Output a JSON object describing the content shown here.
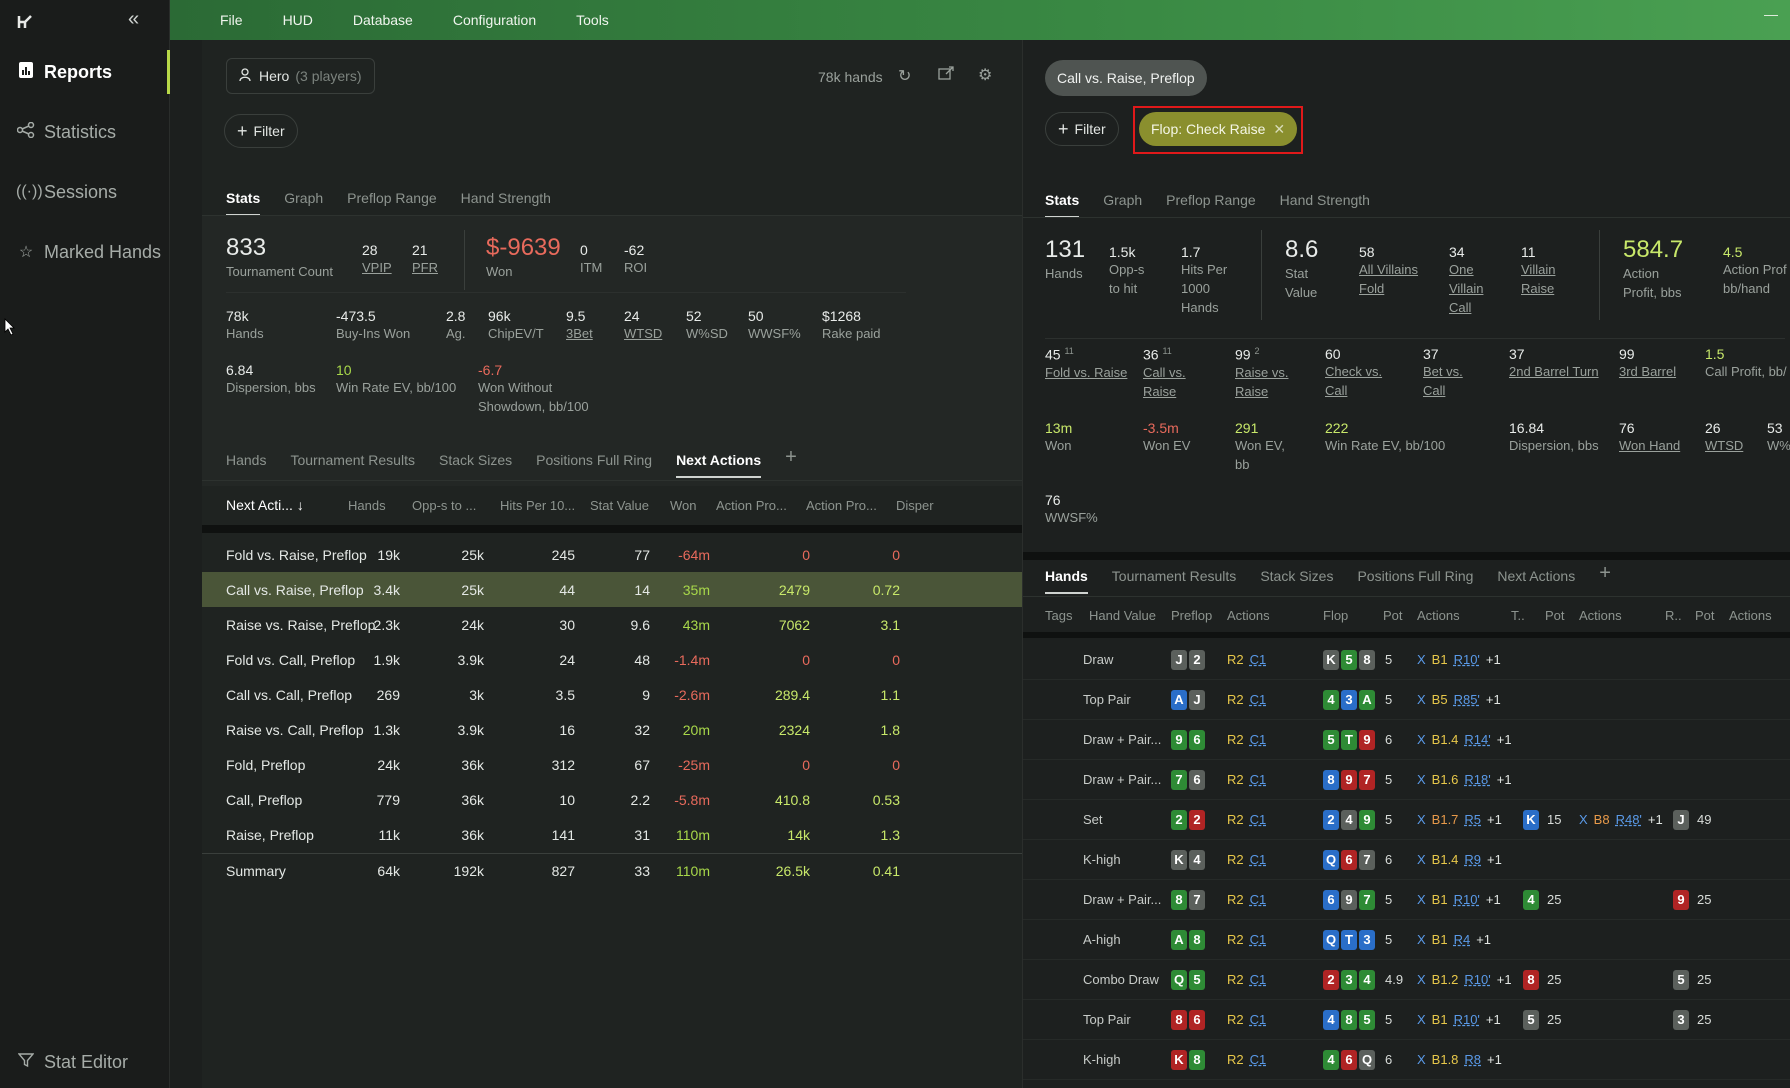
{
  "sidebar": {
    "items": [
      {
        "label": "Reports",
        "icon": "report-icon",
        "active": true
      },
      {
        "label": "Statistics",
        "icon": "share-icon"
      },
      {
        "label": "Sessions",
        "icon": "broadcast-icon"
      },
      {
        "label": "Marked Hands",
        "icon": "star-icon"
      }
    ],
    "footer_label": "Stat Editor"
  },
  "menu": [
    "File",
    "HUD",
    "Database",
    "Configuration",
    "Tools"
  ],
  "left": {
    "player_label": "Hero",
    "player_count": "(3 players)",
    "hands_count": "78k hands",
    "filter_label": "Filter",
    "tabs": [
      "Stats",
      "Graph",
      "Preflop Range",
      "Hand Strength"
    ],
    "stats_row1": [
      {
        "v": "833",
        "l": "Tournament Count"
      },
      {
        "v": "28",
        "l": "VPIP"
      },
      {
        "v": "21",
        "l": "PFR"
      },
      {
        "v": "$-9639",
        "l": "Won"
      },
      {
        "v": "0",
        "l": "ITM"
      },
      {
        "v": "-62",
        "l": "ROI"
      }
    ],
    "stats_row2": [
      {
        "v": "78k",
        "l": "Hands"
      },
      {
        "v": "-473.5",
        "l": "Buy-Ins Won"
      },
      {
        "v": "2.8",
        "l": "Ag."
      },
      {
        "v": "96k",
        "l": "ChipEV/T"
      },
      {
        "v": "9.5",
        "l": "3Bet"
      },
      {
        "v": "24",
        "l": "WTSD"
      },
      {
        "v": "52",
        "l": "W%SD"
      },
      {
        "v": "50",
        "l": "WWSF%"
      },
      {
        "v": "$1268",
        "l": "Rake paid"
      }
    ],
    "stats_row3": [
      {
        "v": "6.84",
        "l": "Dispersion, bbs"
      },
      {
        "v": "10",
        "l": "Win Rate EV, bb/100"
      },
      {
        "v": "-6.7",
        "l": "Won Without",
        "l2": "Showdown, bb/100"
      }
    ],
    "sub_tabs": [
      "Hands",
      "Tournament Results",
      "Stack Sizes",
      "Positions Full Ring",
      "Next Actions"
    ],
    "columns": [
      "Next Acti...",
      "Hands",
      "Opp-s to ...",
      "Hits Per 10...",
      "Stat Value",
      "Won",
      "Action Pro...",
      "Action Pro...",
      "Disper"
    ],
    "rows": [
      {
        "name": "Fold vs. Raise, Preflop",
        "hands": "19k",
        "opps": "25k",
        "hits": "245",
        "sv": "77",
        "won": "-64m",
        "ap1": "0",
        "ap2": "0"
      },
      {
        "name": "Call vs. Raise, Preflop",
        "hands": "3.4k",
        "opps": "25k",
        "hits": "44",
        "sv": "14",
        "won": "35m",
        "ap1": "2479",
        "ap2": "0.72",
        "selected": true
      },
      {
        "name": "Raise vs. Raise, Preflop",
        "hands": "2.3k",
        "opps": "24k",
        "hits": "30",
        "sv": "9.6",
        "won": "43m",
        "ap1": "7062",
        "ap2": "3.1"
      },
      {
        "name": "Fold vs. Call, Preflop",
        "hands": "1.9k",
        "opps": "3.9k",
        "hits": "24",
        "sv": "48",
        "won": "-1.4m",
        "ap1": "0",
        "ap2": "0"
      },
      {
        "name": "Call vs. Call, Preflop",
        "hands": "269",
        "opps": "3k",
        "hits": "3.5",
        "sv": "9",
        "won": "-2.6m",
        "ap1": "289.4",
        "ap2": "1.1"
      },
      {
        "name": "Raise vs. Call, Preflop",
        "hands": "1.3k",
        "opps": "3.9k",
        "hits": "16",
        "sv": "32",
        "won": "20m",
        "ap1": "2324",
        "ap2": "1.8"
      },
      {
        "name": "Fold, Preflop",
        "hands": "24k",
        "opps": "36k",
        "hits": "312",
        "sv": "67",
        "won": "-25m",
        "ap1": "0",
        "ap2": "0"
      },
      {
        "name": "Call, Preflop",
        "hands": "779",
        "opps": "36k",
        "hits": "10",
        "sv": "2.2",
        "won": "-5.8m",
        "ap1": "410.8",
        "ap2": "0.53"
      },
      {
        "name": "Raise, Preflop",
        "hands": "11k",
        "opps": "36k",
        "hits": "141",
        "sv": "31",
        "won": "110m",
        "ap1": "14k",
        "ap2": "1.3"
      }
    ],
    "summary": {
      "name": "Summary",
      "hands": "64k",
      "opps": "192k",
      "hits": "827",
      "sv": "33",
      "won": "110m",
      "ap1": "26.5k",
      "ap2": "0.41"
    }
  },
  "right": {
    "context_pill": "Call vs. Raise, Preflop",
    "filter_label": "Filter",
    "active_filter": "Flop: Check Raise",
    "tabs": [
      "Stats",
      "Graph",
      "Preflop Range",
      "Hand Strength"
    ],
    "stats_row1": [
      {
        "v": "131",
        "l": "Hands"
      },
      {
        "v": "1.5k",
        "l": "Opp-s",
        "l2": "to hit"
      },
      {
        "v": "1.7",
        "l": "Hits Per",
        "l2": "1000",
        "l3": "Hands"
      },
      {
        "v": "8.6",
        "l": "Stat",
        "l2": "Value"
      },
      {
        "v": "58",
        "l": "All Villains",
        "l2": "Fold"
      },
      {
        "v": "34",
        "l": "One",
        "l2": "Villain",
        "l3": "Call"
      },
      {
        "v": "11",
        "l": "Villain",
        "l2": "Raise"
      },
      {
        "v": "584.7",
        "l": "Action",
        "l2": "Profit, bbs"
      },
      {
        "v": "4.5",
        "l": "Action Prof",
        "l2": "bb/hand"
      }
    ],
    "stats_row2": [
      {
        "v": "45",
        "sup": "11",
        "l": "Fold vs. Raise"
      },
      {
        "v": "36",
        "sup": "11",
        "l": "Call vs.",
        "l2": "Raise"
      },
      {
        "v": "99",
        "sup": "2",
        "l": "Raise vs.",
        "l2": "Raise"
      },
      {
        "v": "60",
        "l": "Check vs.",
        "l2": "Call"
      },
      {
        "v": "37",
        "l": "Bet vs.",
        "l2": "Call"
      },
      {
        "v": "37",
        "l": "2nd Barrel Turn"
      },
      {
        "v": "99",
        "l": "3rd Barrel"
      },
      {
        "v": "1.5",
        "l": "Call Profit, bb/"
      }
    ],
    "stats_row3": [
      {
        "v": "13m",
        "l": "Won"
      },
      {
        "v": "-3.5m",
        "l": "Won EV"
      },
      {
        "v": "291",
        "l": "Won EV,",
        "l2": "bb"
      },
      {
        "v": "222",
        "l": "Win Rate EV, bb/100"
      },
      {
        "v": "16.84",
        "l": "Dispersion, bbs"
      },
      {
        "v": "76",
        "l": "Won Hand"
      },
      {
        "v": "26",
        "l": "WTSD"
      },
      {
        "v": "53",
        "l": "W%"
      }
    ],
    "stats_row4": [
      {
        "v": "76",
        "l": "WWSF%"
      }
    ],
    "sub_tabs": [
      "Hands",
      "Tournament Results",
      "Stack Sizes",
      "Positions Full Ring",
      "Next Actions"
    ],
    "columns": [
      "Tags",
      "Hand Value",
      "Preflop",
      "Actions",
      "Flop",
      "Pot",
      "Actions",
      "T..",
      "Pot",
      "Actions",
      "R..",
      "Pot",
      "Actions"
    ],
    "hands": [
      {
        "hv": "Draw",
        "pre": [
          [
            "J",
            "gray"
          ],
          [
            "2",
            "gray"
          ]
        ],
        "flop": [
          [
            "K",
            "gray"
          ],
          [
            "5",
            "green"
          ],
          [
            "8",
            "gray"
          ]
        ],
        "pot": "5",
        "acts": [
          [
            "X",
            "x"
          ],
          [
            "B1",
            "y"
          ],
          [
            "R10'",
            "b"
          ],
          [
            "+1",
            "g"
          ]
        ]
      },
      {
        "hv": "Top Pair",
        "pre": [
          [
            "A",
            "blue"
          ],
          [
            "J",
            "gray"
          ]
        ],
        "flop": [
          [
            "4",
            "green"
          ],
          [
            "3",
            "blue"
          ],
          [
            "A",
            "green"
          ]
        ],
        "pot": "5",
        "acts": [
          [
            "X",
            "x"
          ],
          [
            "B5",
            "y"
          ],
          [
            "R85'",
            "b"
          ],
          [
            "+1",
            "g"
          ]
        ]
      },
      {
        "hv": "Draw + Pair...",
        "pre": [
          [
            "9",
            "green"
          ],
          [
            "6",
            "green"
          ]
        ],
        "flop": [
          [
            "5",
            "green"
          ],
          [
            "T",
            "green"
          ],
          [
            "9",
            "red"
          ]
        ],
        "pot": "6",
        "acts": [
          [
            "X",
            "x"
          ],
          [
            "B1.4",
            "y"
          ],
          [
            "R14'",
            "b"
          ],
          [
            "+1",
            "g"
          ]
        ]
      },
      {
        "hv": "Draw + Pair...",
        "pre": [
          [
            "7",
            "green"
          ],
          [
            "6",
            "gray"
          ]
        ],
        "flop": [
          [
            "8",
            "blue"
          ],
          [
            "9",
            "red"
          ],
          [
            "7",
            "red"
          ]
        ],
        "pot": "5",
        "acts": [
          [
            "X",
            "x"
          ],
          [
            "B1.6",
            "y"
          ],
          [
            "R18'",
            "b"
          ],
          [
            "+1",
            "g"
          ]
        ]
      },
      {
        "hv": "Set",
        "pre": [
          [
            "2",
            "green"
          ],
          [
            "2",
            "red"
          ]
        ],
        "flop": [
          [
            "2",
            "blue"
          ],
          [
            "4",
            "gray"
          ],
          [
            "9",
            "green"
          ]
        ],
        "pot": "5",
        "acts": [
          [
            "X",
            "x"
          ],
          [
            "B1.7",
            "o"
          ],
          [
            "R5",
            "b"
          ],
          [
            "+1",
            "g"
          ]
        ],
        "turn": [
          [
            "K",
            "blue"
          ]
        ],
        "tpot": "15",
        "tacts": [
          [
            "X",
            "x"
          ],
          [
            "B8",
            "o"
          ],
          [
            "R48'",
            "b"
          ],
          [
            "+1",
            "g"
          ]
        ],
        "river": [
          [
            "J",
            "gray"
          ]
        ],
        "rpot": "49"
      },
      {
        "hv": "K-high",
        "pre": [
          [
            "K",
            "gray"
          ],
          [
            "4",
            "gray"
          ]
        ],
        "flop": [
          [
            "Q",
            "blue"
          ],
          [
            "6",
            "red"
          ],
          [
            "7",
            "gray"
          ]
        ],
        "pot": "6",
        "acts": [
          [
            "X",
            "x"
          ],
          [
            "B1.4",
            "y"
          ],
          [
            "R9",
            "b"
          ],
          [
            "+1",
            "g"
          ]
        ]
      },
      {
        "hv": "Draw + Pair...",
        "pre": [
          [
            "8",
            "green"
          ],
          [
            "7",
            "gray"
          ]
        ],
        "flop": [
          [
            "6",
            "blue"
          ],
          [
            "9",
            "gray"
          ],
          [
            "7",
            "green"
          ]
        ],
        "pot": "5",
        "acts": [
          [
            "X",
            "x"
          ],
          [
            "B1",
            "y"
          ],
          [
            "R10'",
            "b"
          ],
          [
            "+1",
            "g"
          ]
        ],
        "turn": [
          [
            "4",
            "green"
          ]
        ],
        "tpot": "25",
        "river": [
          [
            "9",
            "red"
          ]
        ],
        "rpot": "25"
      },
      {
        "hv": "A-high",
        "pre": [
          [
            "A",
            "green"
          ],
          [
            "8",
            "green"
          ]
        ],
        "flop": [
          [
            "Q",
            "blue"
          ],
          [
            "T",
            "blue"
          ],
          [
            "3",
            "blue"
          ]
        ],
        "pot": "5",
        "acts": [
          [
            "X",
            "x"
          ],
          [
            "B1",
            "y"
          ],
          [
            "R4",
            "b"
          ],
          [
            "+1",
            "g"
          ]
        ]
      },
      {
        "hv": "Combo Draw",
        "pre": [
          [
            "Q",
            "green"
          ],
          [
            "5",
            "green"
          ]
        ],
        "flop": [
          [
            "2",
            "red"
          ],
          [
            "3",
            "green"
          ],
          [
            "4",
            "green"
          ]
        ],
        "pot": "4.9",
        "acts": [
          [
            "X",
            "x"
          ],
          [
            "B1.2",
            "y"
          ],
          [
            "R10'",
            "b"
          ],
          [
            "+1",
            "g"
          ]
        ],
        "turn": [
          [
            "8",
            "red"
          ]
        ],
        "tpot": "25",
        "river": [
          [
            "5",
            "gray"
          ]
        ],
        "rpot": "25"
      },
      {
        "hv": "Top Pair",
        "pre": [
          [
            "8",
            "red"
          ],
          [
            "6",
            "red"
          ]
        ],
        "flop": [
          [
            "4",
            "blue"
          ],
          [
            "8",
            "green"
          ],
          [
            "5",
            "green"
          ]
        ],
        "pot": "5",
        "acts": [
          [
            "X",
            "x"
          ],
          [
            "B1",
            "y"
          ],
          [
            "R10'",
            "b"
          ],
          [
            "+1",
            "g"
          ]
        ],
        "turn": [
          [
            "5",
            "gray"
          ]
        ],
        "tpot": "25",
        "river": [
          [
            "3",
            "gray"
          ]
        ],
        "rpot": "25"
      },
      {
        "hv": "K-high",
        "pre": [
          [
            "K",
            "red"
          ],
          [
            "8",
            "green"
          ]
        ],
        "flop": [
          [
            "4",
            "green"
          ],
          [
            "6",
            "red"
          ],
          [
            "Q",
            "gray"
          ]
        ],
        "pot": "6",
        "acts": [
          [
            "X",
            "x"
          ],
          [
            "B1.8",
            "y"
          ],
          [
            "R8",
            "b"
          ],
          [
            "+1",
            "g"
          ]
        ]
      }
    ]
  }
}
